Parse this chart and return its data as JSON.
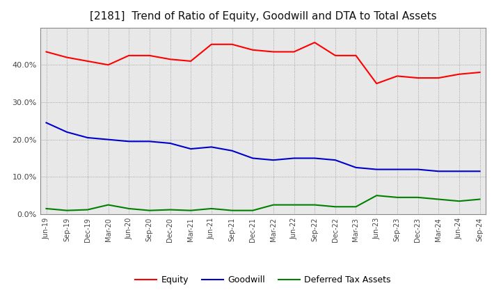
{
  "title": "[2181]  Trend of Ratio of Equity, Goodwill and DTA to Total Assets",
  "x_labels": [
    "Jun-19",
    "Sep-19",
    "Dec-19",
    "Mar-20",
    "Jun-20",
    "Sep-20",
    "Dec-20",
    "Mar-21",
    "Jun-21",
    "Sep-21",
    "Dec-21",
    "Mar-22",
    "Jun-22",
    "Sep-22",
    "Dec-22",
    "Mar-23",
    "Jun-23",
    "Sep-23",
    "Dec-23",
    "Mar-24",
    "Jun-24",
    "Sep-24"
  ],
  "equity": [
    43.5,
    42.0,
    41.0,
    40.0,
    42.5,
    42.5,
    41.5,
    41.0,
    45.5,
    45.5,
    44.0,
    43.5,
    43.5,
    46.0,
    42.5,
    42.5,
    35.0,
    37.0,
    36.5,
    36.5,
    37.5,
    38.0
  ],
  "goodwill": [
    24.5,
    22.0,
    20.5,
    20.0,
    19.5,
    19.5,
    19.0,
    17.5,
    18.0,
    17.0,
    15.0,
    14.5,
    15.0,
    15.0,
    14.5,
    12.5,
    12.0,
    12.0,
    12.0,
    11.5,
    11.5,
    11.5
  ],
  "dta": [
    1.5,
    1.0,
    1.2,
    2.5,
    1.5,
    1.0,
    1.2,
    1.0,
    1.5,
    1.0,
    1.0,
    2.5,
    2.5,
    2.5,
    2.0,
    2.0,
    5.0,
    4.5,
    4.5,
    4.0,
    3.5,
    4.0
  ],
  "equity_color": "#ff0000",
  "goodwill_color": "#0000cc",
  "dta_color": "#008000",
  "ylim": [
    0,
    50
  ],
  "yticks": [
    0,
    10,
    20,
    30,
    40
  ],
  "background_color": "#ffffff",
  "plot_bg_color": "#e8e8e8",
  "grid_color": "#888888",
  "title_fontsize": 11,
  "tick_fontsize": 7,
  "legend_fontsize": 9
}
